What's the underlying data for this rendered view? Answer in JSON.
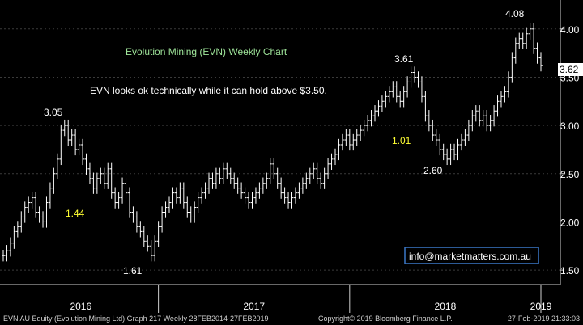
{
  "chart_data": {
    "type": "line",
    "title": "Evolution Mining (EVN) Weekly Chart",
    "commentary": "EVN looks ok technically while it can hold above $3.50.",
    "contact": "info@marketmatters.com.au",
    "last_price_label": "3.62",
    "xlabel": "",
    "ylabel": "",
    "x_ticks": [
      "2016",
      "2017",
      "2018",
      "2019"
    ],
    "y_ticks": [
      "1.50",
      "2.00",
      "2.50",
      "3.00",
      "3.50",
      "4.00"
    ],
    "y_tick_values": [
      1.5,
      2.0,
      2.5,
      3.0,
      3.5,
      4.0
    ],
    "ylim": [
      1.35,
      4.3
    ],
    "grid": true,
    "legend": "none",
    "colors": {
      "background": "#000000",
      "line": "#ffffff",
      "grid": "#3a3a3a",
      "title": "#9fe59a",
      "highlight": "#ffff33",
      "contact_border": "#3a78c8",
      "price_tag_bg": "#ffffff",
      "price_tag_text": "#000000"
    },
    "annotations": [
      {
        "text": "3.05",
        "color": "white"
      },
      {
        "text": "1.44",
        "color": "yellow"
      },
      {
        "text": "1.61",
        "color": "white"
      },
      {
        "text": "3.61",
        "color": "white"
      },
      {
        "text": "1.01",
        "color": "yellow"
      },
      {
        "text": "2.60",
        "color": "white"
      },
      {
        "text": "4.08",
        "color": "white"
      }
    ],
    "series": [
      {
        "values": [
          1.65,
          1.7,
          1.78,
          1.9,
          1.95,
          2.05,
          2.15,
          2.2,
          2.25,
          2.1,
          2.05,
          2.0,
          2.2,
          2.35,
          2.5,
          2.65,
          2.95,
          3.0,
          2.85,
          2.9,
          2.75,
          2.8,
          2.65,
          2.55,
          2.45,
          2.35,
          2.45,
          2.5,
          2.4,
          2.55,
          2.3,
          2.2,
          2.25,
          2.4,
          2.3,
          2.1,
          2.05,
          1.95,
          1.9,
          1.8,
          1.75,
          1.65,
          1.8,
          1.95,
          2.1,
          2.15,
          2.2,
          2.3,
          2.25,
          2.35,
          2.2,
          2.1,
          2.05,
          2.15,
          2.25,
          2.3,
          2.35,
          2.45,
          2.4,
          2.5,
          2.45,
          2.55,
          2.5,
          2.45,
          2.4,
          2.35,
          2.3,
          2.25,
          2.2,
          2.25,
          2.3,
          2.35,
          2.4,
          2.45,
          2.6,
          2.5,
          2.4,
          2.3,
          2.25,
          2.2,
          2.25,
          2.3,
          2.35,
          2.4,
          2.45,
          2.5,
          2.55,
          2.45,
          2.4,
          2.5,
          2.6,
          2.65,
          2.7,
          2.8,
          2.85,
          2.9,
          2.8,
          2.85,
          2.9,
          2.95,
          3.0,
          3.05,
          3.1,
          3.15,
          3.2,
          3.25,
          3.3,
          3.35,
          3.4,
          3.3,
          3.25,
          3.35,
          3.45,
          3.55,
          3.5,
          3.45,
          3.3,
          3.1,
          3.0,
          2.9,
          2.85,
          2.75,
          2.7,
          2.65,
          2.75,
          2.7,
          2.8,
          2.85,
          2.9,
          3.0,
          3.1,
          3.15,
          3.05,
          3.1,
          3.0,
          3.05,
          3.15,
          3.25,
          3.3,
          3.35,
          3.5,
          3.7,
          3.85,
          3.9,
          3.85,
          3.95,
          4.0,
          3.8,
          3.7,
          3.62
        ]
      }
    ]
  },
  "footer": {
    "left": "EVN AU Equity (Evolution Mining Ltd) Graph 217  Weekly 28FEB2014-27FEB2019",
    "middle": "Copyright© 2019 Bloomberg Finance L.P.",
    "right": "27-Feb-2019 21:33:03"
  }
}
